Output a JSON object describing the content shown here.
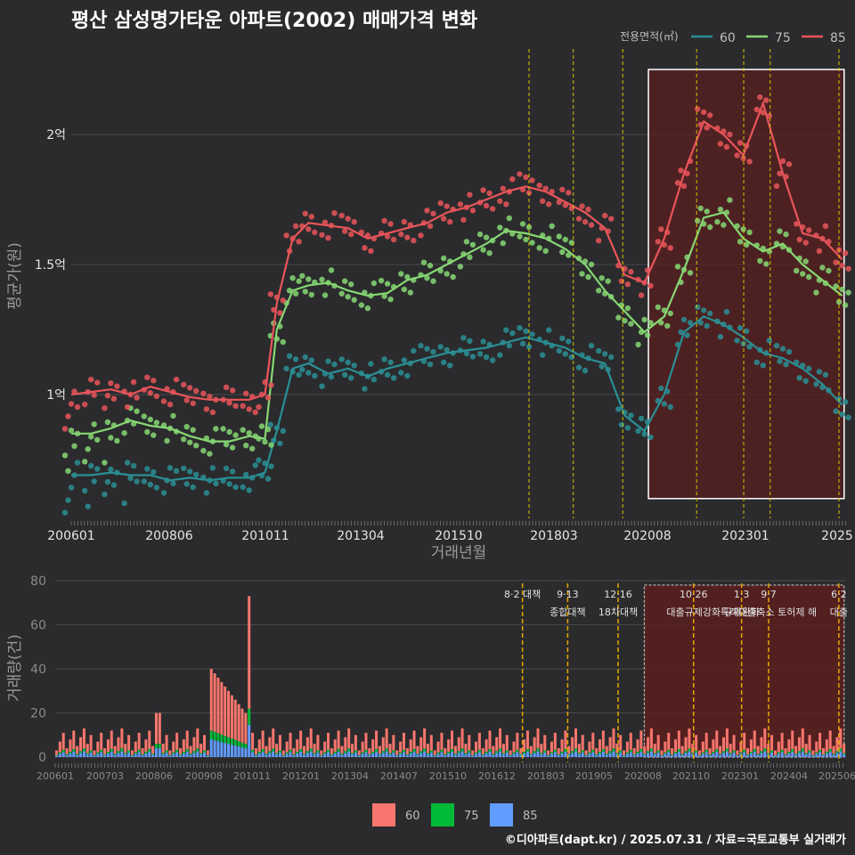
{
  "title": "평산 삼성명가타운 아파트(2002) 매매가격 변화",
  "footer": "©디아파트(dapt.kr) / 2025.07.31 / 자료=국토교통부 실거래가",
  "colors": {
    "s60": "#2a8f95",
    "s75": "#86d873",
    "s85": "#e9555a",
    "bar60": "#f8766d",
    "bar75": "#00ba38",
    "bar85": "#619cff",
    "policy": "#d6c500",
    "policy_bar": "#e6a700",
    "shade": "#5a1f1f"
  },
  "chart_data": [
    {
      "type": "line",
      "xlabel": "거래년월",
      "ylabel": "평균가(원)",
      "x_ticks": [
        "200601",
        "200806",
        "201011",
        "201304",
        "201510",
        "201803",
        "202008",
        "202301",
        "2025"
      ],
      "y_ticks": [
        "1억",
        "1.5억",
        "2억"
      ],
      "ylim": [
        0.6,
        2.3
      ],
      "legend_title": "전용면적(㎡)",
      "series": [
        {
          "name": "60",
          "x": [
            2006.0,
            2006.5,
            2007.0,
            2007.5,
            2008.0,
            2008.5,
            2009.0,
            2009.5,
            2010.0,
            2010.5,
            2010.9,
            2011.2,
            2011.6,
            2012.0,
            2012.5,
            2013.0,
            2013.5,
            2014.0,
            2014.5,
            2015.0,
            2015.5,
            2016.0,
            2016.5,
            2017.0,
            2017.5,
            2018.0,
            2018.5,
            2019.0,
            2019.5,
            2020.0,
            2020.5,
            2021.0,
            2021.5,
            2022.0,
            2022.5,
            2023.0,
            2023.5,
            2024.0,
            2024.5,
            2025.0,
            2025.5
          ],
          "values": [
            0.69,
            0.69,
            0.7,
            0.69,
            0.69,
            0.67,
            0.68,
            0.67,
            0.68,
            0.68,
            0.7,
            0.86,
            1.1,
            1.12,
            1.08,
            1.1,
            1.07,
            1.1,
            1.12,
            1.14,
            1.16,
            1.17,
            1.18,
            1.2,
            1.22,
            1.2,
            1.18,
            1.14,
            1.12,
            0.92,
            0.86,
            1.0,
            1.24,
            1.3,
            1.27,
            1.22,
            1.16,
            1.14,
            1.1,
            1.04,
            0.96
          ]
        },
        {
          "name": "75",
          "x": [
            2006.0,
            2006.5,
            2007.0,
            2007.5,
            2008.0,
            2008.5,
            2009.0,
            2009.5,
            2010.0,
            2010.5,
            2010.9,
            2011.2,
            2011.6,
            2012.0,
            2012.5,
            2013.0,
            2013.5,
            2014.0,
            2014.5,
            2015.0,
            2015.5,
            2016.0,
            2016.5,
            2017.0,
            2017.5,
            2018.0,
            2018.5,
            2019.0,
            2019.5,
            2020.0,
            2020.5,
            2021.0,
            2021.5,
            2022.0,
            2022.5,
            2023.0,
            2023.5,
            2024.0,
            2024.5,
            2025.0,
            2025.5
          ],
          "values": [
            0.85,
            0.85,
            0.87,
            0.9,
            0.88,
            0.87,
            0.84,
            0.82,
            0.82,
            0.84,
            0.83,
            1.25,
            1.4,
            1.42,
            1.43,
            1.4,
            1.38,
            1.39,
            1.44,
            1.46,
            1.5,
            1.54,
            1.58,
            1.63,
            1.62,
            1.6,
            1.56,
            1.5,
            1.4,
            1.32,
            1.24,
            1.3,
            1.48,
            1.68,
            1.7,
            1.6,
            1.55,
            1.58,
            1.5,
            1.44,
            1.38
          ]
        },
        {
          "name": "85",
          "x": [
            2006.0,
            2006.5,
            2007.0,
            2007.5,
            2008.0,
            2008.5,
            2009.0,
            2009.5,
            2010.0,
            2010.5,
            2010.9,
            2011.2,
            2011.6,
            2012.0,
            2012.5,
            2013.0,
            2013.5,
            2014.0,
            2014.5,
            2015.0,
            2015.5,
            2016.0,
            2016.5,
            2017.0,
            2017.5,
            2018.0,
            2018.5,
            2019.0,
            2019.5,
            2020.0,
            2020.5,
            2021.0,
            2021.5,
            2022.0,
            2022.5,
            2023.0,
            2023.5,
            2024.0,
            2024.5,
            2025.0,
            2025.5
          ],
          "values": [
            1.0,
            1.01,
            1.02,
            1.0,
            1.03,
            1.01,
            0.99,
            0.98,
            0.98,
            0.98,
            1.0,
            1.35,
            1.6,
            1.66,
            1.65,
            1.64,
            1.6,
            1.62,
            1.64,
            1.66,
            1.7,
            1.72,
            1.75,
            1.78,
            1.8,
            1.78,
            1.74,
            1.7,
            1.64,
            1.46,
            1.43,
            1.6,
            1.85,
            2.05,
            2.0,
            1.92,
            2.12,
            1.85,
            1.62,
            1.6,
            1.52
          ]
        }
      ],
      "highlight_box": {
        "x_start": 2020.6,
        "x_end": 2025.55,
        "y_min": 0.6,
        "y_max": 2.25
      }
    },
    {
      "type": "bar",
      "xlabel": "",
      "ylabel": "거래량(건)",
      "x_ticks": [
        "200601",
        "200703",
        "200806",
        "200908",
        "201011",
        "201201",
        "201304",
        "201407",
        "201510",
        "201612",
        "201803",
        "201905",
        "202008",
        "202110",
        "202301",
        "202404",
        "202506"
      ],
      "y_ticks": [
        "0",
        "20",
        "40",
        "60",
        "80"
      ],
      "ylim": [
        0,
        80
      ],
      "legend": [
        "60",
        "75",
        "85"
      ],
      "policies": [
        {
          "date": "8·2 대책",
          "x": 2017.58
        },
        {
          "date": "9·13",
          "label": "종합대책",
          "x": 2018.7
        },
        {
          "date": "12·16",
          "label": "18차대책",
          "x": 2019.95
        },
        {
          "date": "10·26",
          "label": "대출규제강화",
          "x": 2021.82
        },
        {
          "date": "1·3",
          "label": "규제완화",
          "x": 2023.01
        },
        {
          "date": "9·7",
          "label": "특례대출축소 토허제 해",
          "x": 2023.68
        },
        {
          "date": "6·2",
          "label": "대출",
          "x": 2025.42
        }
      ]
    }
  ]
}
